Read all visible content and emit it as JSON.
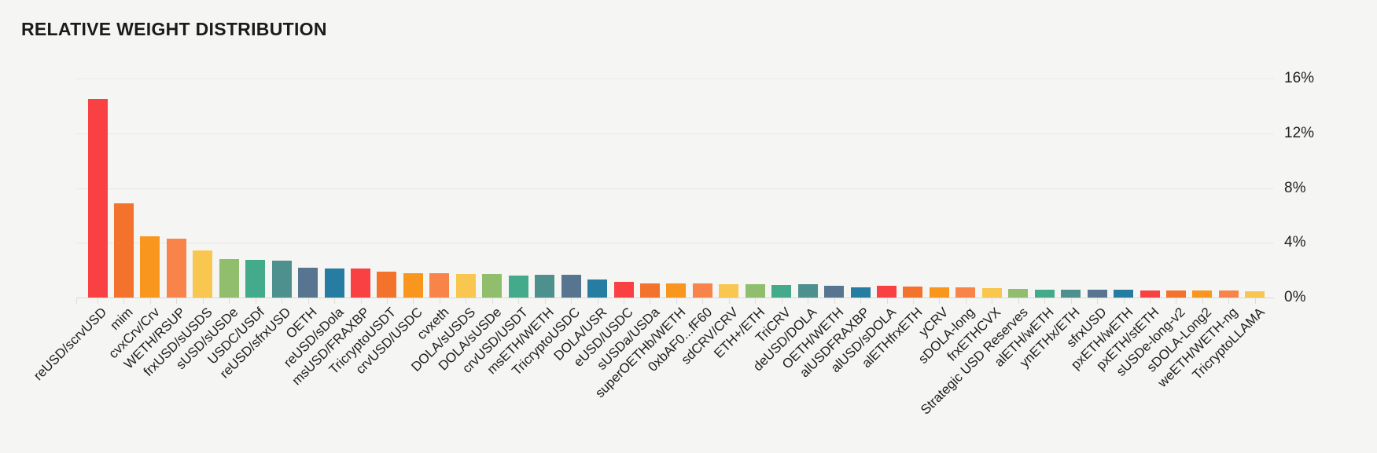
{
  "title": "RELATIVE WEIGHT DISTRIBUTION",
  "colors": {
    "background": "#f5f5f3",
    "title_text": "#1b1b1b",
    "axis_text": "#222222",
    "label_text": "#1d1d1d",
    "gridline": "#e8e8e5",
    "axis_line": "#d8d8d5"
  },
  "chart_data": {
    "type": "bar",
    "title": "RELATIVE WEIGHT DISTRIBUTION",
    "unit": "%",
    "ylim": [
      0,
      16
    ],
    "y_ticks": [
      0,
      4,
      8,
      12,
      16
    ],
    "y_tick_labels": [
      "0%",
      "4%",
      "8%",
      "12%",
      "16%"
    ],
    "y_axis_side": "right",
    "x_label_rotation": -45,
    "grid": true,
    "legend": "none",
    "palette": [
      "#f94144",
      "#f3722c",
      "#f8961e",
      "#f9844a",
      "#f9c74f",
      "#90be6d",
      "#43aa8b",
      "#4d908e",
      "#577590",
      "#277da1"
    ],
    "categories": [
      "reUSD/scrvUSD",
      "mim",
      "cvxCrv/Crv",
      "WETH/RSUP",
      "frxUSD/sUSDS",
      "sUSD/sUSDe",
      "USDC/USDf",
      "reUSD/sfrxUSD",
      "OETH",
      "reUSD/sDola",
      "msUSD/FRAXBP",
      "TricryptoUSDT",
      "crvUSD/USDC",
      "cvxeth",
      "DOLA/sUSDS",
      "DOLA/sUSDe",
      "crvUSD/USDT",
      "msETH/WETH",
      "TricryptoUSDC",
      "DOLA/USR",
      "eUSD/USDC",
      "sUSDa/USDa",
      "superOETHb/WETH",
      "0xbAF0...fF60",
      "sdCRV/CRV",
      "ETH+/ETH",
      "TriCRV",
      "deUSD/DOLA",
      "OETH/WETH",
      "alUSDFRAXBP",
      "alUSD/sDOLA",
      "alETHfrxETH",
      "yCRV",
      "sDOLA-long",
      "frxETHCVX",
      "Strategic USD Reserves",
      "alETH/wETH",
      "ynETHx/ETH",
      "sfrxUSD",
      "pxETH/wETH",
      "pxETH/stETH",
      "sUSDe-long-v2",
      "sDOLA-Long2",
      "weETH/WETH-ng",
      "TricryptoLLAMA"
    ],
    "values": [
      14.5,
      6.9,
      4.5,
      4.3,
      3.45,
      2.8,
      2.75,
      2.7,
      2.2,
      2.1,
      2.15,
      1.9,
      1.75,
      1.75,
      1.7,
      1.7,
      1.6,
      1.65,
      1.65,
      1.3,
      1.15,
      1.05,
      1.05,
      1.05,
      1.0,
      1.0,
      0.9,
      0.95,
      0.85,
      0.75,
      0.85,
      0.8,
      0.75,
      0.75,
      0.7,
      0.65,
      0.6,
      0.6,
      0.55,
      0.55,
      0.5,
      0.5,
      0.5,
      0.5,
      0.45
    ]
  }
}
